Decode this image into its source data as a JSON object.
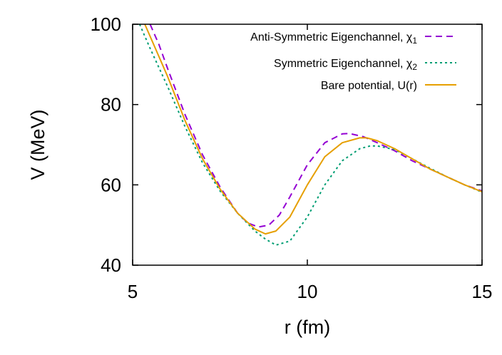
{
  "chart_data": {
    "type": "line",
    "xlabel": "r (fm)",
    "ylabel": "V (MeV)",
    "xlim": [
      5,
      15
    ],
    "ylim": [
      40,
      100
    ],
    "xticks": [
      5,
      10,
      15
    ],
    "yticks": [
      40,
      60,
      80,
      100
    ],
    "grid": false,
    "legend_position": "top-right",
    "series": [
      {
        "name": "Anti-Symmetric Eigenchannel, χ",
        "name_subscript": "1",
        "color": "#9400d3",
        "dash": "dashed",
        "x": [
          5.5,
          5.75,
          6.0,
          6.5,
          7.0,
          7.5,
          8.0,
          8.3,
          8.6,
          8.9,
          9.2,
          9.5,
          10.0,
          10.5,
          11.0,
          11.2,
          11.6,
          12.0,
          12.5,
          13.0,
          13.5,
          14.0,
          14.5,
          15.0
        ],
        "y": [
          100.0,
          95.0,
          89.0,
          77.5,
          67.5,
          59.5,
          53.0,
          50.5,
          49.5,
          50.0,
          52.5,
          57.0,
          65.0,
          70.5,
          72.7,
          72.8,
          72.0,
          70.5,
          68.5,
          66.0,
          64.0,
          62.0,
          60.0,
          58.5
        ]
      },
      {
        "name": "Symmetric Eigenchannel, χ",
        "name_subscript": "2",
        "color": "#009e73",
        "dash": "dotted",
        "x": [
          5.2,
          5.5,
          6.0,
          6.5,
          7.0,
          7.5,
          8.0,
          8.5,
          8.8,
          9.1,
          9.5,
          10.0,
          10.5,
          11.0,
          11.5,
          11.8,
          12.0,
          12.5,
          13.0,
          13.5,
          14.0,
          14.5,
          15.0
        ],
        "y": [
          100.0,
          94.0,
          84.5,
          74.5,
          65.5,
          58.5,
          53.0,
          48.5,
          46.5,
          45.0,
          46.0,
          52.0,
          60.0,
          66.0,
          69.0,
          69.7,
          69.7,
          68.8,
          66.5,
          64.2,
          62.0,
          60.0,
          58.2
        ]
      },
      {
        "name": "Bare potential, U(r)",
        "color": "#e69f00",
        "dash": "solid",
        "x": [
          5.35,
          5.75,
          6.0,
          6.5,
          7.0,
          7.5,
          8.0,
          8.5,
          8.8,
          9.1,
          9.5,
          10.0,
          10.5,
          11.0,
          11.5,
          11.7,
          12.0,
          12.5,
          13.0,
          13.5,
          14.0,
          14.5,
          15.0
        ],
        "y": [
          100.0,
          92.0,
          87.0,
          76.0,
          66.5,
          59.0,
          53.0,
          49.0,
          47.8,
          48.5,
          52.0,
          60.0,
          67.0,
          70.5,
          71.7,
          71.7,
          71.0,
          69.0,
          66.5,
          64.0,
          62.0,
          60.0,
          58.3
        ]
      }
    ]
  }
}
